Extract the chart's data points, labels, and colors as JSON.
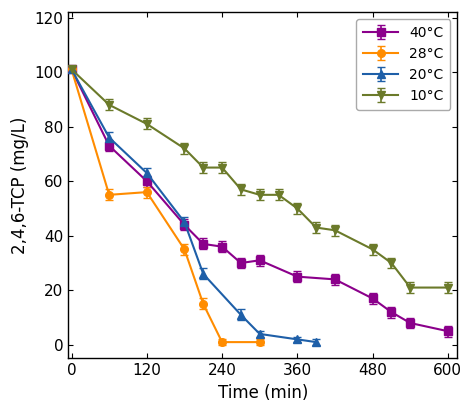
{
  "title": "",
  "xlabel": "Time (min)",
  "ylabel": "2,4,6-TCP (mg/L)",
  "xlim": [
    -5,
    615
  ],
  "ylim": [
    -5,
    122
  ],
  "xticks": [
    0,
    120,
    240,
    360,
    480,
    600
  ],
  "yticks": [
    0,
    20,
    40,
    60,
    80,
    100,
    120
  ],
  "series": [
    {
      "label": "40°C",
      "color": "#8B008B",
      "marker": "s",
      "x": [
        0,
        60,
        120,
        180,
        210,
        240,
        270,
        300,
        360,
        420,
        480,
        510,
        540,
        600
      ],
      "y": [
        101,
        73,
        60,
        44,
        37,
        36,
        30,
        31,
        25,
        24,
        17,
        12,
        8,
        5
      ],
      "yerr": [
        1,
        2,
        2,
        2,
        2,
        2,
        2,
        2,
        2,
        2,
        2,
        2,
        2,
        2
      ]
    },
    {
      "label": "28°C",
      "color": "#FF8C00",
      "marker": "o",
      "x": [
        0,
        60,
        120,
        180,
        210,
        240,
        300
      ],
      "y": [
        101,
        55,
        56,
        35,
        15,
        1,
        1
      ],
      "yerr": [
        1,
        2,
        2,
        2,
        2,
        1,
        1
      ]
    },
    {
      "label": "20°C",
      "color": "#1E5FA8",
      "marker": "^",
      "x": [
        0,
        60,
        120,
        180,
        210,
        270,
        300,
        360,
        390
      ],
      "y": [
        101,
        76,
        63,
        45,
        26,
        11,
        4,
        2,
        1
      ],
      "yerr": [
        1,
        2,
        2,
        2,
        2,
        2,
        1,
        1,
        1
      ]
    },
    {
      "label": "10°C",
      "color": "#6B7A2A",
      "marker": "v",
      "x": [
        0,
        60,
        120,
        180,
        210,
        240,
        270,
        300,
        330,
        360,
        390,
        420,
        480,
        510,
        540,
        600
      ],
      "y": [
        101,
        88,
        81,
        72,
        65,
        65,
        57,
        55,
        55,
        50,
        43,
        42,
        35,
        30,
        21,
        21
      ],
      "yerr": [
        1,
        2,
        2,
        2,
        2,
        2,
        2,
        2,
        2,
        2,
        2,
        2,
        2,
        2,
        2,
        2
      ]
    }
  ],
  "legend_loc": "upper right",
  "figsize": [
    4.74,
    4.13
  ],
  "dpi": 100
}
